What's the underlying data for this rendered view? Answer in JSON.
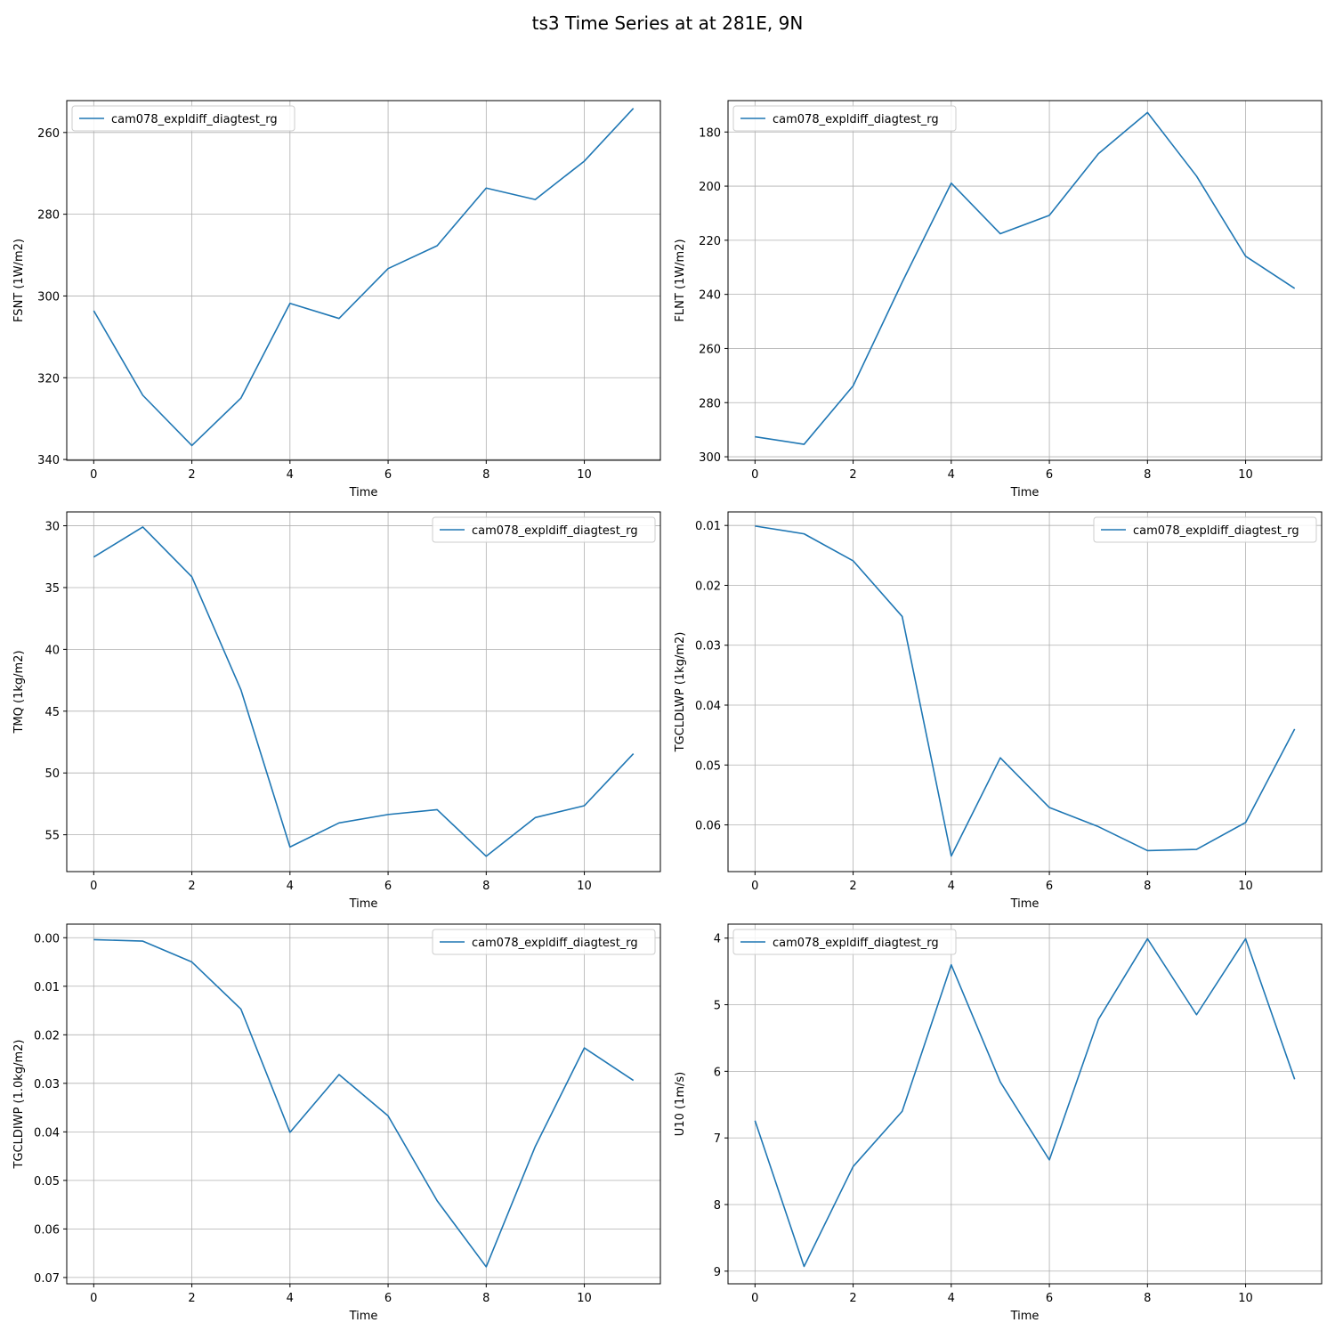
{
  "figure": {
    "title": "ts3 Time Series at at 281E, 9N"
  },
  "chart_data": [
    {
      "type": "line",
      "xlabel": "Time",
      "ylabel": "FSNT (1W/m2)",
      "x": [
        0,
        1,
        2,
        3,
        4,
        5,
        6,
        7,
        8,
        9,
        10,
        11
      ],
      "xticks": [
        0,
        2,
        4,
        6,
        8,
        10
      ],
      "xlim": [
        -0.55,
        11.55
      ],
      "yticks": [
        260,
        280,
        300,
        320,
        340
      ],
      "ylim": [
        340.2,
        252.2
      ],
      "y_inverted": true,
      "grid": true,
      "legend": "upper-left",
      "series": [
        {
          "name": "cam078_expldiff_diagtest_rg",
          "color": "#1f77b4",
          "values": [
            303.6,
            324.3,
            336.6,
            325.0,
            301.8,
            305.5,
            293.3,
            287.7,
            273.6,
            276.4,
            267.0,
            254.1
          ]
        }
      ]
    },
    {
      "type": "line",
      "xlabel": "Time",
      "ylabel": "FLNT (1W/m2)",
      "x": [
        0,
        1,
        2,
        3,
        4,
        5,
        6,
        7,
        8,
        9,
        10,
        11
      ],
      "xticks": [
        0,
        2,
        4,
        6,
        8,
        10
      ],
      "xlim": [
        -0.55,
        11.55
      ],
      "yticks": [
        180,
        200,
        220,
        240,
        260,
        280,
        300
      ],
      "ylim": [
        301.3,
        168.4
      ],
      "y_inverted": true,
      "grid": true,
      "legend": "upper-left",
      "series": [
        {
          "name": "cam078_expldiff_diagtest_rg",
          "color": "#1f77b4",
          "values": [
            292.6,
            295.4,
            273.8,
            235.5,
            198.9,
            217.6,
            210.8,
            188.0,
            172.8,
            196.3,
            225.9,
            237.8
          ]
        }
      ]
    },
    {
      "type": "line",
      "xlabel": "Time",
      "ylabel": "TMQ (1kg/m2)",
      "x": [
        0,
        1,
        2,
        3,
        4,
        5,
        6,
        7,
        8,
        9,
        10,
        11
      ],
      "xticks": [
        0,
        2,
        4,
        6,
        8,
        10
      ],
      "xlim": [
        -0.55,
        11.55
      ],
      "yticks": [
        30,
        35,
        40,
        45,
        50,
        55
      ],
      "ylim": [
        57.98,
        28.88
      ],
      "y_inverted": true,
      "grid": true,
      "legend": "upper-right",
      "series": [
        {
          "name": "cam078_expldiff_diagtest_rg",
          "color": "#1f77b4",
          "values": [
            32.53,
            30.1,
            34.13,
            43.27,
            55.99,
            54.04,
            53.36,
            52.97,
            56.74,
            53.61,
            52.65,
            48.44
          ]
        }
      ]
    },
    {
      "type": "line",
      "xlabel": "Time",
      "ylabel": "TGCLDLWP (1kg/m2)",
      "x": [
        0,
        1,
        2,
        3,
        4,
        5,
        6,
        7,
        8,
        9,
        10,
        11
      ],
      "xticks": [
        0,
        2,
        4,
        6,
        8,
        10
      ],
      "xlim": [
        -0.55,
        11.55
      ],
      "yticks": [
        0.01,
        0.02,
        0.03,
        0.04,
        0.05,
        0.06
      ],
      "ylim": [
        0.0678,
        0.00774
      ],
      "y_inverted": true,
      "grid": true,
      "legend": "upper-right",
      "series": [
        {
          "name": "cam078_expldiff_diagtest_rg",
          "color": "#1f77b4",
          "values": [
            0.0101,
            0.0114,
            0.0159,
            0.0252,
            0.0652,
            0.0488,
            0.0571,
            0.0603,
            0.0643,
            0.0641,
            0.0596,
            0.044
          ]
        }
      ]
    },
    {
      "type": "line",
      "xlabel": "Time",
      "ylabel": "TGCLDIWP (1.0kg/m2)",
      "x": [
        0,
        1,
        2,
        3,
        4,
        5,
        6,
        7,
        8,
        9,
        10,
        11
      ],
      "xticks": [
        0,
        2,
        4,
        6,
        8,
        10
      ],
      "xlim": [
        -0.55,
        11.55
      ],
      "yticks": [
        0.0,
        0.01,
        0.02,
        0.03,
        0.04,
        0.05,
        0.06,
        0.07
      ],
      "ylim": [
        0.0713,
        -0.0028
      ],
      "y_inverted": true,
      "grid": true,
      "legend": "upper-right",
      "series": [
        {
          "name": "cam078_expldiff_diagtest_rg",
          "color": "#1f77b4",
          "values": [
            0.0004,
            0.0007,
            0.005,
            0.0147,
            0.0401,
            0.0282,
            0.0367,
            0.0542,
            0.0678,
            0.043,
            0.0227,
            0.0294
          ]
        }
      ]
    },
    {
      "type": "line",
      "xlabel": "Time",
      "ylabel": "U10 (1m/s)",
      "x": [
        0,
        1,
        2,
        3,
        4,
        5,
        6,
        7,
        8,
        9,
        10,
        11
      ],
      "xticks": [
        0,
        2,
        4,
        6,
        8,
        10
      ],
      "xlim": [
        -0.55,
        11.55
      ],
      "yticks": [
        4,
        5,
        6,
        7,
        8,
        9
      ],
      "ylim": [
        9.19,
        3.79
      ],
      "y_inverted": true,
      "grid": true,
      "legend": "upper-left",
      "series": [
        {
          "name": "cam078_expldiff_diagtest_rg",
          "color": "#1f77b4",
          "values": [
            6.74,
            8.93,
            7.43,
            6.6,
            4.4,
            6.16,
            7.33,
            5.22,
            4.01,
            5.15,
            4.01,
            6.12
          ]
        }
      ]
    }
  ]
}
